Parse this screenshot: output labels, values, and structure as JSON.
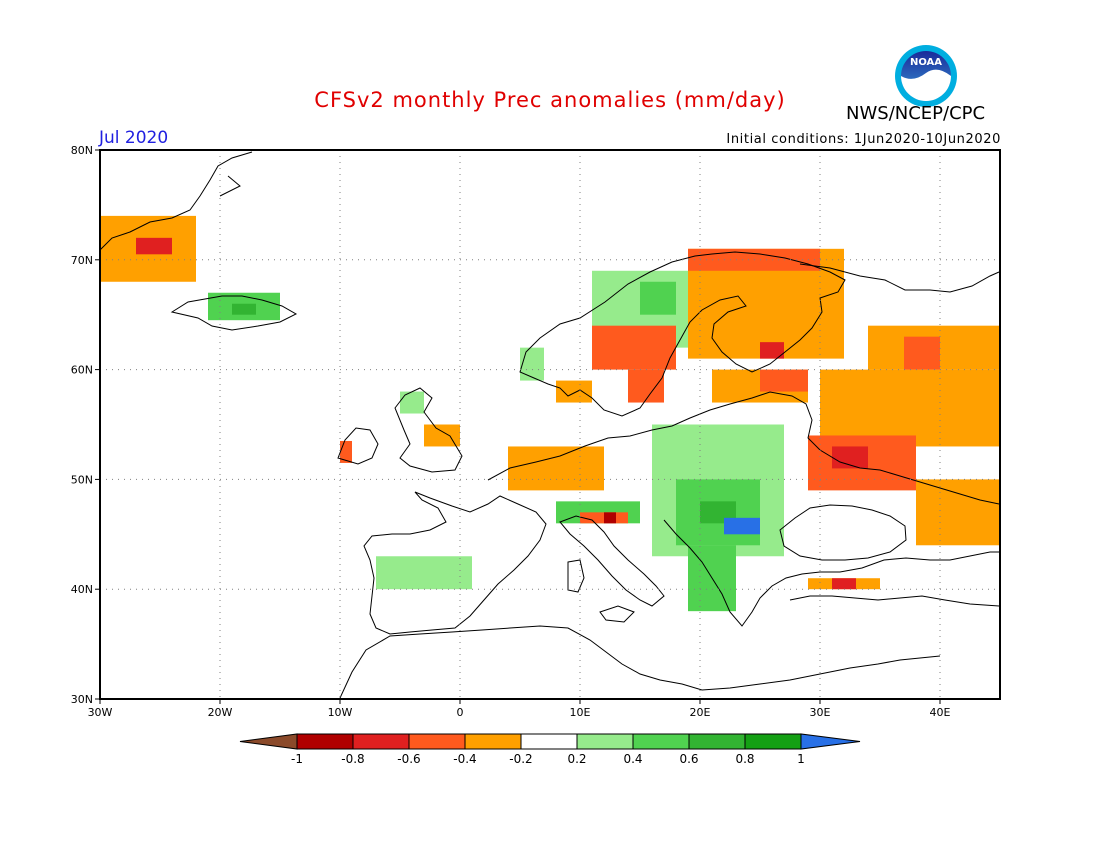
{
  "header": {
    "title": "CFSv2 monthly Prec anomalies (mm/day)",
    "month": "Jul 2020",
    "initial_conditions": "Initial conditions: 1Jun2020-10Jun2020",
    "agency": "NWS/NCEP/CPC",
    "logo_text": "NOAA"
  },
  "map": {
    "lon_range": [
      -30,
      45
    ],
    "lat_range": [
      30,
      80
    ],
    "lat_ticks": [
      "30N",
      "40N",
      "50N",
      "60N",
      "70N",
      "80N"
    ],
    "lon_ticks": [
      "30W",
      "20W",
      "10W",
      "0",
      "10E",
      "20E",
      "30E",
      "40E"
    ],
    "grid": "dotted",
    "projection": "equirectangular"
  },
  "colorbar": {
    "labels": [
      "-1",
      "-0.8",
      "-0.6",
      "-0.4",
      "-0.2",
      "0.2",
      "0.4",
      "0.6",
      "0.8",
      "1"
    ],
    "colors": {
      "lt_-1": "#8b4a2a",
      "-1_-0.8": "#b00000",
      "-0.8_-0.6": "#e02020",
      "-0.6_-0.4": "#ff5a1e",
      "-0.4_-0.2": "#ffa000",
      "-0.2_0.2": "#ffffff",
      "0.2_0.4": "#96eb8c",
      "0.4_0.6": "#50d250",
      "0.6_0.8": "#32b432",
      "0.8_1": "#14a014",
      "gt_1": "#2870e6"
    }
  },
  "chart_data": {
    "type": "heatmap",
    "title": "CFSv2 monthly Prec anomalies (mm/day)",
    "units": "mm/day",
    "field": [
      {
        "lat": [
          68,
          74
        ],
        "lon": [
          -30,
          -22
        ],
        "class": "-0.4_-0.2"
      },
      {
        "lat": [
          70.5,
          72
        ],
        "lon": [
          -27,
          -24
        ],
        "class": "-0.8_-0.6"
      },
      {
        "lat": [
          64.5,
          67
        ],
        "lon": [
          -21,
          -15
        ],
        "class": "0.4_0.6"
      },
      {
        "lat": [
          65,
          66
        ],
        "lon": [
          -19,
          -17
        ],
        "class": "0.6_0.8"
      },
      {
        "lat": [
          51.5,
          53.5
        ],
        "lon": [
          -10,
          -9
        ],
        "class": "-0.6_-0.4"
      },
      {
        "lat": [
          53,
          55
        ],
        "lon": [
          -3,
          0
        ],
        "class": "-0.4_-0.2"
      },
      {
        "lat": [
          56,
          58
        ],
        "lon": [
          -5,
          -3
        ],
        "class": "0.2_0.4"
      },
      {
        "lat": [
          49,
          53
        ],
        "lon": [
          4,
          12
        ],
        "class": "-0.4_-0.2"
      },
      {
        "lat": [
          57,
          59
        ],
        "lon": [
          8,
          11
        ],
        "class": "-0.4_-0.2"
      },
      {
        "lat": [
          59,
          62
        ],
        "lon": [
          5,
          7
        ],
        "class": "0.2_0.4"
      },
      {
        "lat": [
          62,
          69
        ],
        "lon": [
          11,
          19
        ],
        "class": "0.2_0.4"
      },
      {
        "lat": [
          65,
          68
        ],
        "lon": [
          15,
          18
        ],
        "class": "0.4_0.6"
      },
      {
        "lat": [
          60,
          64
        ],
        "lon": [
          11,
          18
        ],
        "class": "-0.6_-0.4"
      },
      {
        "lat": [
          57,
          60
        ],
        "lon": [
          14,
          17
        ],
        "class": "-0.6_-0.4"
      },
      {
        "lat": [
          61,
          71
        ],
        "lon": [
          19,
          32
        ],
        "class": "-0.4_-0.2"
      },
      {
        "lat": [
          69,
          71
        ],
        "lon": [
          19,
          30
        ],
        "class": "-0.6_-0.4"
      },
      {
        "lat": [
          57,
          60
        ],
        "lon": [
          21,
          29
        ],
        "class": "-0.4_-0.2"
      },
      {
        "lat": [
          58,
          60
        ],
        "lon": [
          25,
          29
        ],
        "class": "-0.6_-0.4"
      },
      {
        "lat": [
          61,
          62.5
        ],
        "lon": [
          25,
          27
        ],
        "class": "-0.8_-0.6"
      },
      {
        "lat": [
          53,
          60
        ],
        "lon": [
          30,
          45
        ],
        "class": "-0.4_-0.2"
      },
      {
        "lat": [
          60,
          64
        ],
        "lon": [
          34,
          45
        ],
        "class": "-0.4_-0.2"
      },
      {
        "lat": [
          60,
          63
        ],
        "lon": [
          37,
          40
        ],
        "class": "-0.6_-0.4"
      },
      {
        "lat": [
          49,
          54
        ],
        "lon": [
          29,
          38
        ],
        "class": "-0.6_-0.4"
      },
      {
        "lat": [
          51,
          53
        ],
        "lon": [
          31,
          34
        ],
        "class": "-0.8_-0.6"
      },
      {
        "lat": [
          44,
          50
        ],
        "lon": [
          38,
          45
        ],
        "class": "-0.4_-0.2"
      },
      {
        "lat": [
          40,
          41
        ],
        "lon": [
          29,
          35
        ],
        "class": "-0.4_-0.2"
      },
      {
        "lat": [
          40,
          41
        ],
        "lon": [
          31,
          33
        ],
        "class": "-0.8_-0.6"
      },
      {
        "lat": [
          43,
          55
        ],
        "lon": [
          16,
          27
        ],
        "class": "0.2_0.4"
      },
      {
        "lat": [
          44,
          50
        ],
        "lon": [
          18,
          25
        ],
        "class": "0.4_0.6"
      },
      {
        "lat": [
          46,
          48
        ],
        "lon": [
          20,
          23
        ],
        "class": "0.6_0.8"
      },
      {
        "lat": [
          45,
          46.5
        ],
        "lon": [
          22,
          25
        ],
        "class": "gt_1"
      },
      {
        "lat": [
          38,
          44
        ],
        "lon": [
          19,
          23
        ],
        "class": "0.4_0.6"
      },
      {
        "lat": [
          46,
          48
        ],
        "lon": [
          8,
          15
        ],
        "class": "0.4_0.6"
      },
      {
        "lat": [
          46,
          47
        ],
        "lon": [
          10,
          14
        ],
        "class": "-0.6_-0.4"
      },
      {
        "lat": [
          46,
          47
        ],
        "lon": [
          12,
          13
        ],
        "class": "-1_-0.8"
      },
      {
        "lat": [
          40,
          43
        ],
        "lon": [
          -7,
          1
        ],
        "class": "0.2_0.4"
      }
    ]
  }
}
